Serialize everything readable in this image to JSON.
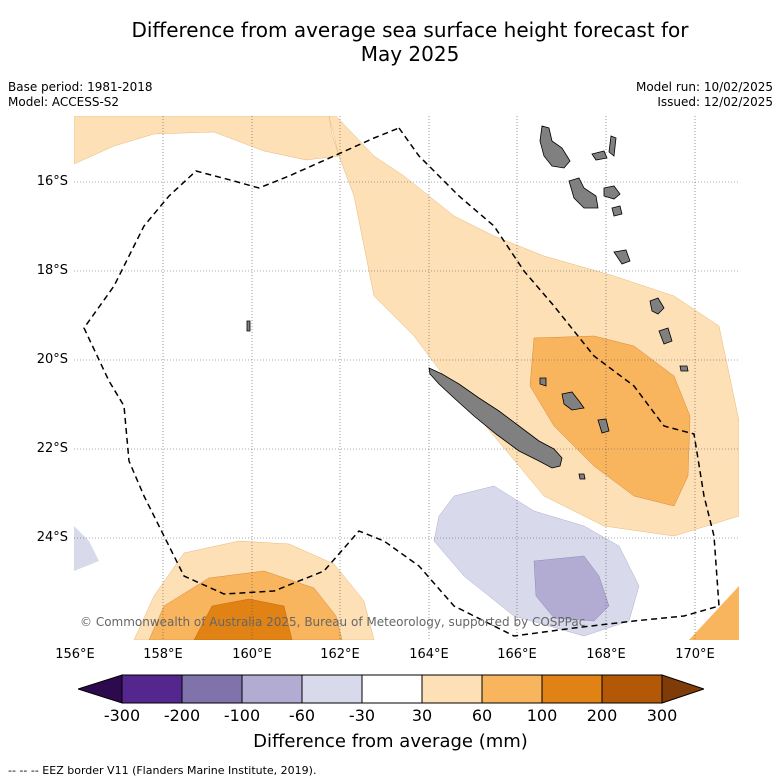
{
  "title": {
    "line1": "Difference from average sea surface height forecast for",
    "line2": "May 2025"
  },
  "meta": {
    "base_period": "Base period: 1981-2018",
    "model": "Model: ACCESS-S2",
    "model_run": "Model run: 10/02/2025",
    "issued": "Issued: 12/02/2025"
  },
  "map": {
    "copyright": "© Commonwealth of Australia 2025, Bureau of Meteorology, supported by COSPPac",
    "lat_labels": [
      "16°S",
      "18°S",
      "20°S",
      "22°S",
      "24°S"
    ],
    "lon_labels": [
      "156°E",
      "158°E",
      "160°E",
      "162°E",
      "164°E",
      "166°E",
      "168°E",
      "170°E"
    ],
    "land_color": "#808080",
    "eez_style": "dashed black"
  },
  "colorbar": {
    "title": "Difference from average (mm)",
    "ticks": [
      "-300",
      "-200",
      "-100",
      "-60",
      "-30",
      "30",
      "60",
      "100",
      "200",
      "300"
    ],
    "colors": [
      "#2d0a4e",
      "#54278f",
      "#8073ac",
      "#b2abd2",
      "#d8daeb",
      "#ffffff",
      "#fee0b6",
      "#f9b45e",
      "#e08214",
      "#b35806",
      "#7f3b08"
    ]
  },
  "footer": {
    "legend": "--  --  -- EEZ border V11 (Flanders Marine Institute, 2019)."
  }
}
